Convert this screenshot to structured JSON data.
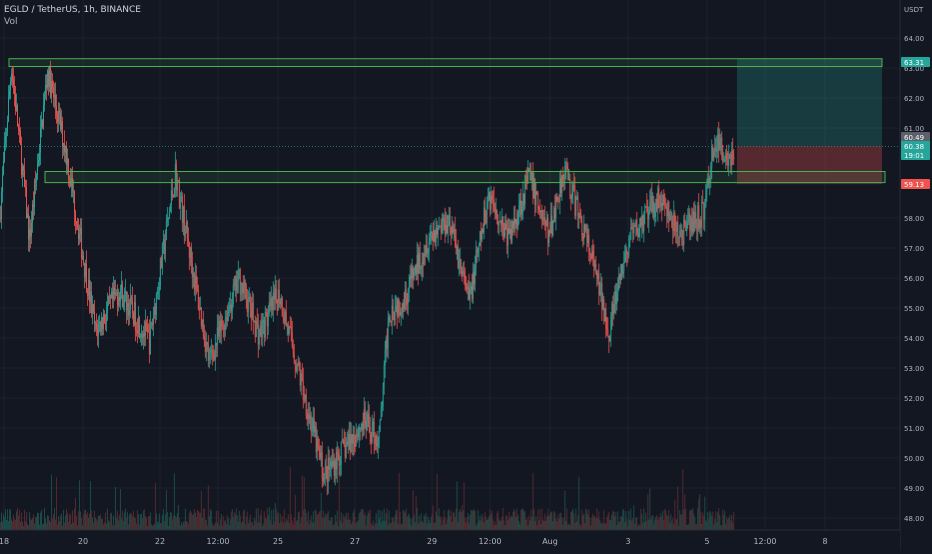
{
  "header": {
    "symbol_line": "EGLD / TetherUS, 1h, BINANCE",
    "volume_label": "Vol"
  },
  "price_axis": {
    "currency": "USDT",
    "ticks": [
      "64.00",
      "63.00",
      "62.00",
      "61.00",
      "58.00",
      "57.00",
      "56.00",
      "55.00",
      "54.00",
      "53.00",
      "52.00",
      "51.00",
      "50.00",
      "49.00",
      "48.00"
    ],
    "tick_values": [
      64,
      63,
      62,
      61,
      58,
      57,
      56,
      55,
      54,
      53,
      52,
      51,
      50,
      49,
      48
    ]
  },
  "price_labels": [
    {
      "text": "63.31",
      "value": 63.31,
      "color": "#26a69a"
    },
    {
      "text": "60.49",
      "value": 60.49,
      "color": "#5d606b"
    },
    {
      "text": "60.38",
      "value": 60.38,
      "color": "#26a69a"
    },
    {
      "text": "19:01",
      "value": 60.05,
      "color": "#26a69a"
    },
    {
      "text": "59.13",
      "value": 59.13,
      "color": "#ef5350"
    }
  ],
  "time_axis": {
    "labels": [
      "18",
      "20",
      "22",
      "12:00",
      "25",
      "27",
      "29",
      "12:00",
      "Aug",
      "3",
      "5",
      "12:00",
      "8"
    ]
  },
  "chart_data": {
    "type": "candlestick",
    "instrument": "EGLD / TetherUS",
    "interval": "1h",
    "exchange": "BINANCE",
    "ylim": [
      47.7,
      64.6
    ],
    "anchors": [
      {
        "t": 0,
        "p": 58.0
      },
      {
        "t": 12,
        "p": 63.1
      },
      {
        "t": 30,
        "p": 57.3
      },
      {
        "t": 48,
        "p": 62.9
      },
      {
        "t": 66,
        "p": 60.3
      },
      {
        "t": 96,
        "p": 54.2
      },
      {
        "t": 120,
        "p": 55.6
      },
      {
        "t": 150,
        "p": 53.9
      },
      {
        "t": 176,
        "p": 59.5
      },
      {
        "t": 210,
        "p": 53.2
      },
      {
        "t": 240,
        "p": 56.0
      },
      {
        "t": 260,
        "p": 54.1
      },
      {
        "t": 280,
        "p": 55.5
      },
      {
        "t": 300,
        "p": 52.8
      },
      {
        "t": 325,
        "p": 49.4
      },
      {
        "t": 345,
        "p": 50.3
      },
      {
        "t": 365,
        "p": 51.2
      },
      {
        "t": 380,
        "p": 50.6
      },
      {
        "t": 390,
        "p": 54.9
      },
      {
        "t": 405,
        "p": 55.3
      },
      {
        "t": 430,
        "p": 57.4
      },
      {
        "t": 450,
        "p": 58.0
      },
      {
        "t": 470,
        "p": 55.2
      },
      {
        "t": 490,
        "p": 58.8
      },
      {
        "t": 510,
        "p": 57.3
      },
      {
        "t": 530,
        "p": 59.4
      },
      {
        "t": 550,
        "p": 57.4
      },
      {
        "t": 565,
        "p": 59.7
      },
      {
        "t": 590,
        "p": 57.0
      },
      {
        "t": 610,
        "p": 54.3
      },
      {
        "t": 630,
        "p": 57.2
      },
      {
        "t": 660,
        "p": 58.7
      },
      {
        "t": 680,
        "p": 57.4
      },
      {
        "t": 705,
        "p": 58.2
      },
      {
        "t": 715,
        "p": 60.5
      },
      {
        "t": 730,
        "p": 60.1
      }
    ],
    "current_price": 60.38,
    "zones": [
      {
        "top": 63.31,
        "bottom": 63.05,
        "color": "#4caf50"
      },
      {
        "top": 59.55,
        "bottom": 59.18,
        "color": "#4caf50"
      }
    ],
    "position": {
      "type": "long",
      "entry": 60.4,
      "target": 63.31,
      "stop": 59.13
    }
  }
}
